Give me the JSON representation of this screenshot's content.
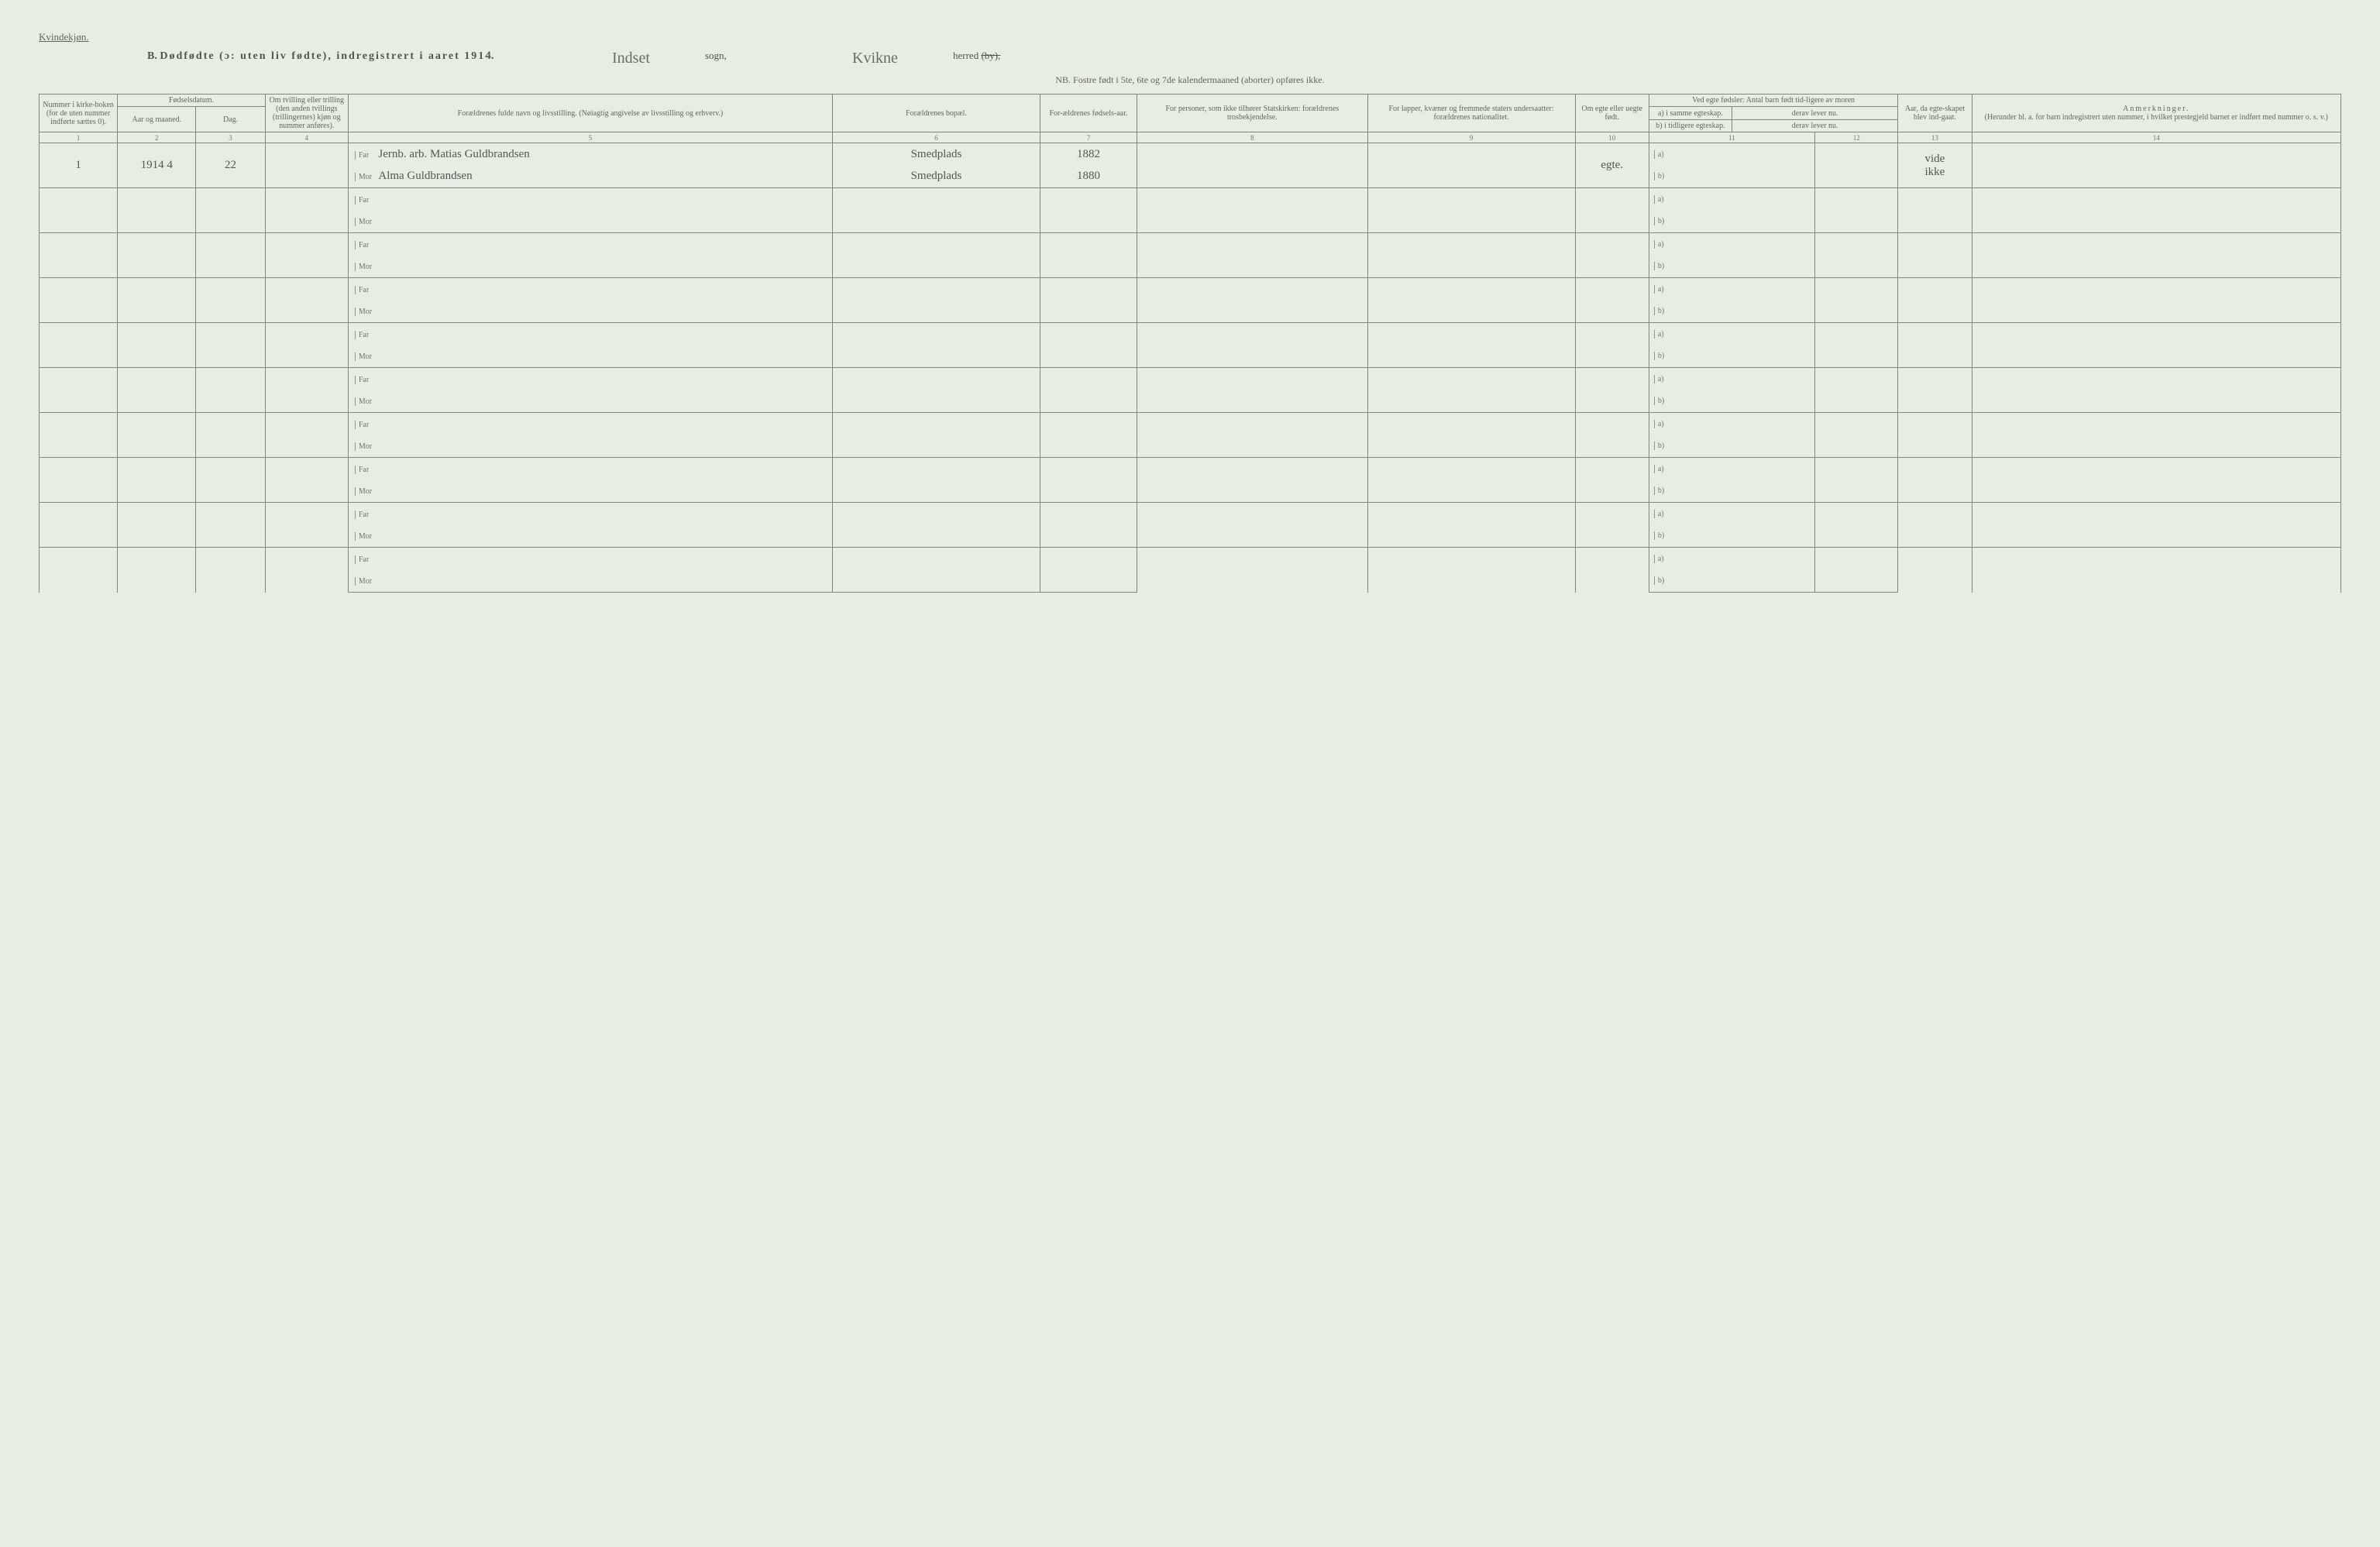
{
  "header": {
    "corner": "Kvindekjøn.",
    "title_prefix": "B.",
    "title_main": "Dødfødte (ɔ: uten liv fødte), indregistrert i aaret 191",
    "year_digit": "4.",
    "sogn_value": "Indset",
    "sogn_label": "sogn,",
    "herred_value": "Kvikne",
    "herred_label": "herred",
    "herred_strike": "(by),",
    "nb": "NB. Fostre født i 5te, 6te og 7de kalendermaaned (aborter) opføres ikke."
  },
  "columns": {
    "c1": "Nummer i kirke-boken (for de uten nummer indførte sættes 0).",
    "c2_top": "Fødselsdatum.",
    "c2a": "Aar og maaned.",
    "c2b": "Dag.",
    "c4": "Om tvilling eller trilling (den anden tvillings (trillingernes) kjøn og nummer anføres).",
    "c5": "Forældrenes fulde navn og livsstilling. (Nøiagtig angivelse av livsstilling og erhverv.)",
    "c6": "Forældrenes bopæl.",
    "c7": "For-ældrenes fødsels-aar.",
    "c8": "For personer, som ikke tilhører Statskirken: forældrenes trosbekjendelse.",
    "c9": "For lapper, kvæner og fremmede staters undersaatter: forældrenes nationalitet.",
    "c10": "Om egte eller uegte født.",
    "c11_top": "Ved egte fødsler: Antal barn født tid-ligere av moren",
    "c11a": "a) i samme egteskap.",
    "c11b": "derav lever nu.",
    "c11c": "b) i tidligere egteskap.",
    "c11d": "derav lever nu.",
    "c12": "Aar, da egte-skapet blev ind-gaat.",
    "c13": "Anmerkninger.",
    "c13_sub": "(Herunder bl. a. for barn indregistrert uten nummer, i hvilket prestegjeld barnet er indført med nummer o. s. v.)"
  },
  "colnums": [
    "1",
    "2",
    "3",
    "4",
    "5",
    "6",
    "7",
    "8",
    "9",
    "10",
    "11",
    "",
    "12",
    "13",
    "14"
  ],
  "prefixes": {
    "far": "Far",
    "mor": "Mor",
    "a": "a)",
    "b": "b)"
  },
  "entry": {
    "num": "1",
    "year_month": "1914 4",
    "day": "22",
    "far_name": "Jernb. arb. Matias Guldbrandsen",
    "mor_name": "Alma Guldbrandsen",
    "far_bopal": "Smedplads",
    "mor_bopal": "Smedplads",
    "far_year": "1882",
    "mor_year": "1880",
    "egte": "egte.",
    "c12_note": "vide",
    "c12_note2": "ikke"
  },
  "style": {
    "bg": "#e8ede2",
    "line": "#7a8a7a",
    "text": "#4a5a4a"
  }
}
